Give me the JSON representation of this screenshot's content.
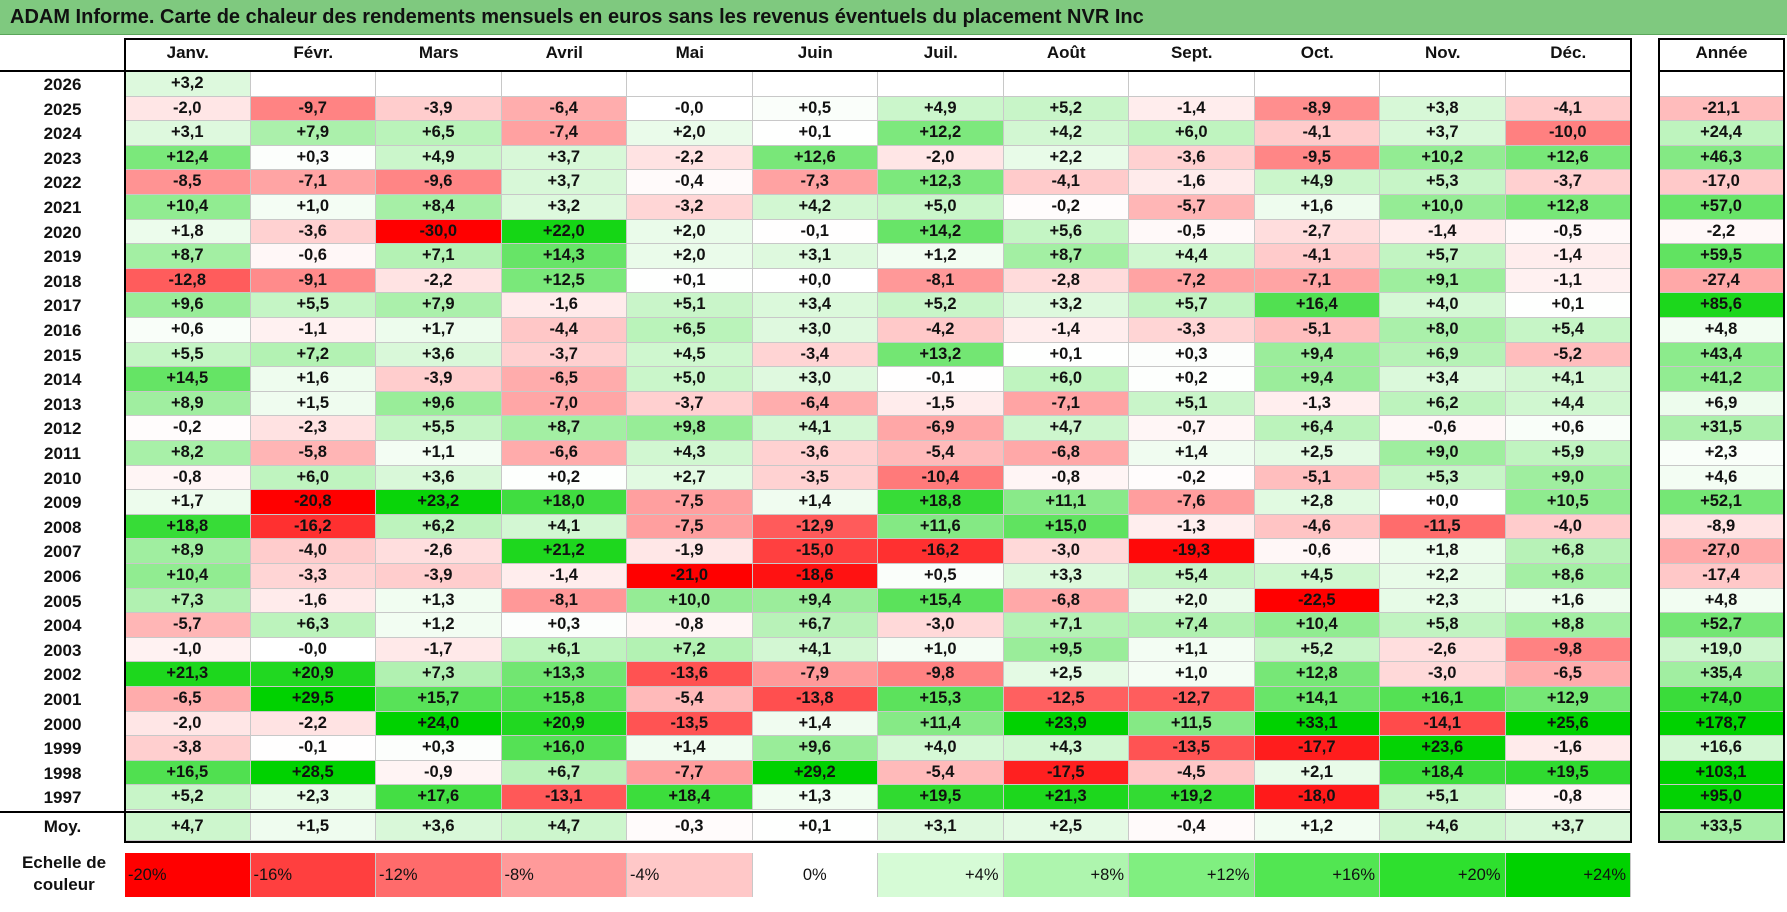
{
  "title": "ADAM Informe. Carte de chaleur des rendements mensuels en euros sans les revenus éventuels du placement NVR Inc",
  "months": [
    "Janv.",
    "Févr.",
    "Mars",
    "Avril",
    "Mai",
    "Juin",
    "Juil.",
    "Août",
    "Sept.",
    "Oct.",
    "Nov.",
    "Déc."
  ],
  "annual_header": "Année",
  "avg_label": "Moy.",
  "scale_label": "Echelle de couleur",
  "scale": [
    {
      "label": "-20%",
      "value": -20,
      "color": "#ff0000"
    },
    {
      "label": "-16%",
      "value": -16,
      "color": "#ff3f3f"
    },
    {
      "label": "-12%",
      "value": -12,
      "color": "#ff6b6b"
    },
    {
      "label": "-8%",
      "value": -8,
      "color": "#ff9a9a"
    },
    {
      "label": "-4%",
      "value": -4,
      "color": "#ffc8c8"
    },
    {
      "label": "0%",
      "value": 0,
      "color": "#ffffff"
    },
    {
      "label": "+4%",
      "value": 4,
      "color": "#d6fbd6"
    },
    {
      "label": "+8%",
      "value": 8,
      "color": "#aef5ae"
    },
    {
      "label": "+12%",
      "value": 12,
      "color": "#80ef80"
    },
    {
      "label": "+16%",
      "value": 16,
      "color": "#52e652"
    },
    {
      "label": "+20%",
      "value": 20,
      "color": "#2ee02e"
    },
    {
      "label": "+24%",
      "value": 24,
      "color": "#00d200"
    }
  ],
  "chart_data": {
    "type": "heatmap",
    "title": "ADAM Informe. Carte de chaleur des rendements mensuels en euros sans les revenus éventuels du placement NVR Inc",
    "x": [
      "Janv.",
      "Févr.",
      "Mars",
      "Avril",
      "Mai",
      "Juin",
      "Juil.",
      "Août",
      "Sept.",
      "Oct.",
      "Nov.",
      "Déc.",
      "Année"
    ],
    "rows": [
      {
        "year": "2026",
        "values": [
          "+3,2",
          "",
          "",
          "",
          "",
          "",
          "",
          "",
          "",
          "",
          "",
          "",
          ""
        ]
      },
      {
        "year": "2025",
        "values": [
          "-2,0",
          "-9,7",
          "-3,9",
          "-6,4",
          "-0,0",
          "+0,5",
          "+4,9",
          "+5,2",
          "-1,4",
          "-8,9",
          "+3,8",
          "-4,1",
          "-21,1"
        ]
      },
      {
        "year": "2024",
        "values": [
          "+3,1",
          "+7,9",
          "+6,5",
          "-7,4",
          "+2,0",
          "+0,1",
          "+12,2",
          "+4,2",
          "+6,0",
          "-4,1",
          "+3,7",
          "-10,0",
          "+24,4"
        ]
      },
      {
        "year": "2023",
        "values": [
          "+12,4",
          "+0,3",
          "+4,9",
          "+3,7",
          "-2,2",
          "+12,6",
          "-2,0",
          "+2,2",
          "-3,6",
          "-9,5",
          "+10,2",
          "+12,6",
          "+46,3"
        ]
      },
      {
        "year": "2022",
        "values": [
          "-8,5",
          "-7,1",
          "-9,6",
          "+3,7",
          "-0,4",
          "-7,3",
          "+12,3",
          "-4,1",
          "-1,6",
          "+4,9",
          "+5,3",
          "-3,7",
          "-17,0"
        ]
      },
      {
        "year": "2021",
        "values": [
          "+10,4",
          "+1,0",
          "+8,4",
          "+3,2",
          "-3,2",
          "+4,2",
          "+5,0",
          "-0,2",
          "-5,7",
          "+1,6",
          "+10,0",
          "+12,8",
          "+57,0"
        ]
      },
      {
        "year": "2020",
        "values": [
          "+1,8",
          "-3,6",
          "-30,0",
          "+22,0",
          "+2,0",
          "-0,1",
          "+14,2",
          "+5,6",
          "-0,5",
          "-2,7",
          "-1,4",
          "-0,5",
          "-2,2"
        ]
      },
      {
        "year": "2019",
        "values": [
          "+8,7",
          "-0,6",
          "+7,1",
          "+14,3",
          "+2,0",
          "+3,1",
          "+1,2",
          "+8,7",
          "+4,4",
          "-4,1",
          "+5,7",
          "-1,4",
          "+59,5"
        ]
      },
      {
        "year": "2018",
        "values": [
          "-12,8",
          "-9,1",
          "-2,2",
          "+12,5",
          "+0,1",
          "+0,0",
          "-8,1",
          "-2,8",
          "-7,2",
          "-7,1",
          "+9,1",
          "-1,1",
          "-27,4"
        ]
      },
      {
        "year": "2017",
        "values": [
          "+9,6",
          "+5,5",
          "+7,9",
          "-1,6",
          "+5,1",
          "+3,4",
          "+5,2",
          "+3,2",
          "+5,7",
          "+16,4",
          "+4,0",
          "+0,1",
          "+85,6"
        ]
      },
      {
        "year": "2016",
        "values": [
          "+0,6",
          "-1,1",
          "+1,7",
          "-4,4",
          "+6,5",
          "+3,0",
          "-4,2",
          "-1,4",
          "-3,3",
          "-5,1",
          "+8,0",
          "+5,4",
          "+4,8"
        ]
      },
      {
        "year": "2015",
        "values": [
          "+5,5",
          "+7,2",
          "+3,6",
          "-3,7",
          "+4,5",
          "-3,4",
          "+13,2",
          "+0,1",
          "+0,3",
          "+9,4",
          "+6,9",
          "-5,2",
          "+43,4"
        ]
      },
      {
        "year": "2014",
        "values": [
          "+14,5",
          "+1,6",
          "-3,9",
          "-6,5",
          "+5,0",
          "+3,0",
          "-0,1",
          "+6,0",
          "+0,2",
          "+9,4",
          "+3,4",
          "+4,1",
          "+41,2"
        ]
      },
      {
        "year": "2013",
        "values": [
          "+8,9",
          "+1,5",
          "+9,6",
          "-7,0",
          "-3,7",
          "-6,4",
          "-1,5",
          "-7,1",
          "+5,1",
          "-1,3",
          "+6,2",
          "+4,4",
          "+6,9"
        ]
      },
      {
        "year": "2012",
        "values": [
          "-0,2",
          "-2,3",
          "+5,5",
          "+8,7",
          "+9,8",
          "+4,1",
          "-6,9",
          "+4,7",
          "-0,7",
          "+6,4",
          "-0,6",
          "+0,6",
          "+31,5"
        ]
      },
      {
        "year": "2011",
        "values": [
          "+8,2",
          "-5,8",
          "+1,1",
          "-6,6",
          "+4,3",
          "-3,6",
          "-5,4",
          "-6,8",
          "+1,4",
          "+2,5",
          "+9,0",
          "+5,9",
          "+2,3"
        ]
      },
      {
        "year": "2010",
        "values": [
          "-0,8",
          "+6,0",
          "+3,6",
          "+0,2",
          "+2,7",
          "-3,5",
          "-10,4",
          "-0,8",
          "-0,2",
          "-5,1",
          "+5,3",
          "+9,0",
          "+4,6"
        ]
      },
      {
        "year": "2009",
        "values": [
          "+1,7",
          "-20,8",
          "+23,2",
          "+18,0",
          "-7,5",
          "+1,4",
          "+18,8",
          "+11,1",
          "-7,6",
          "+2,8",
          "+0,0",
          "+10,5",
          "+52,1"
        ]
      },
      {
        "year": "2008",
        "values": [
          "+18,8",
          "-16,2",
          "+6,2",
          "+4,1",
          "-7,5",
          "-12,9",
          "+11,6",
          "+15,0",
          "-1,3",
          "-4,6",
          "-11,5",
          "-4,0",
          "-8,9"
        ]
      },
      {
        "year": "2007",
        "values": [
          "+8,9",
          "-4,0",
          "-2,6",
          "+21,2",
          "-1,9",
          "-15,0",
          "-16,2",
          "-3,0",
          "-19,3",
          "-0,6",
          "+1,8",
          "+6,8",
          "-27,0"
        ]
      },
      {
        "year": "2006",
        "values": [
          "+10,4",
          "-3,3",
          "-3,9",
          "-1,4",
          "-21,0",
          "-18,6",
          "+0,5",
          "+3,3",
          "+5,4",
          "+4,5",
          "+2,2",
          "+8,6",
          "-17,4"
        ]
      },
      {
        "year": "2005",
        "values": [
          "+7,3",
          "-1,6",
          "+1,3",
          "-8,1",
          "+10,0",
          "+9,4",
          "+15,4",
          "-6,8",
          "+2,0",
          "-22,5",
          "+2,3",
          "+1,6",
          "+4,8"
        ]
      },
      {
        "year": "2004",
        "values": [
          "-5,7",
          "+6,3",
          "+1,2",
          "+0,3",
          "-0,8",
          "+6,7",
          "-3,0",
          "+7,1",
          "+7,4",
          "+10,4",
          "+5,8",
          "+8,8",
          "+52,7"
        ]
      },
      {
        "year": "2003",
        "values": [
          "-1,0",
          "-0,0",
          "-1,7",
          "+6,1",
          "+7,2",
          "+4,1",
          "+1,0",
          "+9,5",
          "+1,1",
          "+5,2",
          "-2,6",
          "-9,8",
          "+19,0"
        ]
      },
      {
        "year": "2002",
        "values": [
          "+21,3",
          "+20,9",
          "+7,3",
          "+13,3",
          "-13,6",
          "-7,9",
          "-9,8",
          "+2,5",
          "+1,0",
          "+12,8",
          "-3,0",
          "-6,5",
          "+35,4"
        ]
      },
      {
        "year": "2001",
        "values": [
          "-6,5",
          "+29,5",
          "+15,7",
          "+15,8",
          "-5,4",
          "-13,8",
          "+15,3",
          "-12,5",
          "-12,7",
          "+14,1",
          "+16,1",
          "+12,9",
          "+74,0"
        ]
      },
      {
        "year": "2000",
        "values": [
          "-2,0",
          "-2,2",
          "+24,0",
          "+20,9",
          "-13,5",
          "+1,4",
          "+11,4",
          "+23,9",
          "+11,5",
          "+33,1",
          "-14,1",
          "+25,6",
          "+178,7"
        ]
      },
      {
        "year": "1999",
        "values": [
          "-3,8",
          "-0,1",
          "+0,3",
          "+16,0",
          "+1,4",
          "+9,6",
          "+4,0",
          "+4,3",
          "-13,5",
          "-17,7",
          "+23,6",
          "-1,6",
          "+16,6"
        ]
      },
      {
        "year": "1998",
        "values": [
          "+16,5",
          "+28,5",
          "-0,9",
          "+6,7",
          "-7,7",
          "+29,2",
          "-5,4",
          "-17,5",
          "-4,5",
          "+2,1",
          "+18,4",
          "+19,5",
          "+103,1"
        ]
      },
      {
        "year": "1997",
        "values": [
          "+5,2",
          "+2,3",
          "+17,6",
          "-13,1",
          "+18,4",
          "+1,3",
          "+19,5",
          "+21,3",
          "+19,2",
          "-18,0",
          "+5,1",
          "-0,8",
          "+95,0"
        ]
      }
    ],
    "average": [
      "+4,7",
      "+1,5",
      "+3,6",
      "+4,7",
      "-0,3",
      "+0,1",
      "+3,1",
      "+2,5",
      "-0,4",
      "+1,2",
      "+4,6",
      "+3,7",
      "+33,5"
    ]
  }
}
